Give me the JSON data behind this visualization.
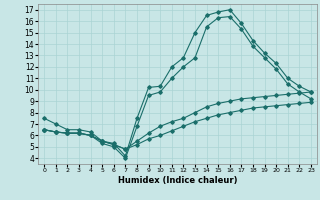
{
  "xlabel": "Humidex (Indice chaleur)",
  "background_color": "#c8e6e6",
  "grid_color": "#aad4d4",
  "line_color": "#1a6e6a",
  "xlim": [
    -0.5,
    23.5
  ],
  "ylim": [
    3.5,
    17.5
  ],
  "xticks": [
    0,
    1,
    2,
    3,
    4,
    5,
    6,
    7,
    8,
    9,
    10,
    11,
    12,
    13,
    14,
    15,
    16,
    17,
    18,
    19,
    20,
    21,
    22,
    23
  ],
  "yticks": [
    4,
    5,
    6,
    7,
    8,
    9,
    10,
    11,
    12,
    13,
    14,
    15,
    16,
    17
  ],
  "line1_x": [
    0,
    1,
    2,
    3,
    4,
    5,
    6,
    7,
    8,
    9,
    10,
    11,
    12,
    13,
    14,
    15,
    16,
    17,
    18,
    19,
    20,
    21,
    22,
    23
  ],
  "line1_y": [
    7.5,
    7.0,
    6.5,
    6.5,
    6.3,
    5.5,
    5.3,
    4.2,
    7.5,
    10.2,
    10.3,
    12.0,
    12.8,
    15.0,
    16.5,
    16.8,
    17.0,
    15.8,
    14.3,
    13.2,
    12.3,
    11.0,
    10.3,
    9.8
  ],
  "line2_x": [
    0,
    1,
    2,
    3,
    4,
    5,
    6,
    7,
    8,
    9,
    10,
    11,
    12,
    13,
    14,
    15,
    16,
    17,
    18,
    19,
    20,
    21,
    22,
    23
  ],
  "line2_y": [
    6.5,
    6.3,
    6.2,
    6.2,
    6.0,
    5.3,
    5.0,
    4.0,
    6.8,
    9.5,
    9.8,
    11.0,
    12.0,
    12.8,
    15.5,
    16.3,
    16.4,
    15.3,
    13.8,
    12.8,
    11.8,
    10.5,
    9.8,
    9.2
  ],
  "line3_x": [
    0,
    1,
    2,
    3,
    4,
    5,
    6,
    7,
    8,
    9,
    10,
    11,
    12,
    13,
    14,
    15,
    16,
    17,
    18,
    19,
    20,
    21,
    22,
    23
  ],
  "line3_y": [
    6.5,
    6.3,
    6.2,
    6.2,
    6.0,
    5.5,
    5.2,
    4.8,
    5.5,
    6.2,
    6.8,
    7.2,
    7.5,
    8.0,
    8.5,
    8.8,
    9.0,
    9.2,
    9.3,
    9.4,
    9.5,
    9.6,
    9.7,
    9.8
  ],
  "line4_x": [
    0,
    1,
    2,
    3,
    4,
    5,
    6,
    7,
    8,
    9,
    10,
    11,
    12,
    13,
    14,
    15,
    16,
    17,
    18,
    19,
    20,
    21,
    22,
    23
  ],
  "line4_y": [
    6.5,
    6.3,
    6.2,
    6.2,
    6.0,
    5.5,
    5.2,
    4.8,
    5.2,
    5.7,
    6.0,
    6.4,
    6.8,
    7.2,
    7.5,
    7.8,
    8.0,
    8.2,
    8.4,
    8.5,
    8.6,
    8.7,
    8.8,
    8.9
  ]
}
